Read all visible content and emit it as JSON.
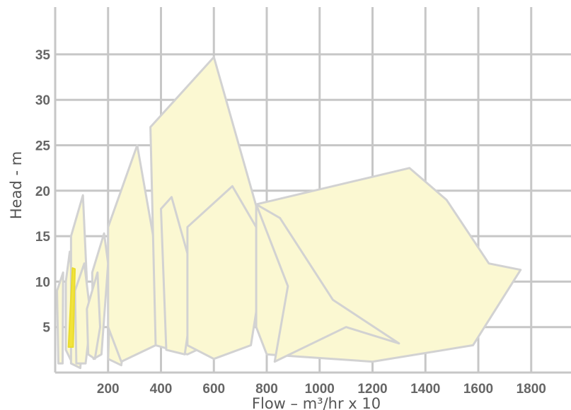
{
  "chart_data": {
    "type": "area",
    "xlabel": "Flow – m³/hr x 10",
    "ylabel": "Head - m",
    "xlim": [
      0,
      1850
    ],
    "ylim": [
      0,
      40
    ],
    "x_ticks": [
      200,
      400,
      600,
      800,
      1000,
      1200,
      1400,
      1600,
      1800
    ],
    "y_ticks": [
      5,
      10,
      15,
      20,
      25,
      30,
      35
    ],
    "grid": true,
    "colors": {
      "fill": "#fbf8d2",
      "outline": "#d2d2d2",
      "highlight_fill": "#f2e33a",
      "grid": "#c7c7c7",
      "tick_text": "#666666"
    },
    "regions": [
      {
        "points": [
          [
            7,
            9
          ],
          [
            30,
            11
          ],
          [
            28,
            1
          ],
          [
            12,
            1
          ]
        ]
      },
      {
        "points": [
          [
            40,
            10
          ],
          [
            55,
            13.3
          ],
          [
            70,
            8.3
          ],
          [
            62,
            1.2
          ],
          [
            40,
            2.5
          ]
        ]
      },
      {
        "points": [
          [
            60,
            15
          ],
          [
            105,
            19.5
          ],
          [
            120,
            10
          ],
          [
            95,
            0.5
          ],
          [
            60,
            1
          ]
        ]
      },
      {
        "points": [
          [
            75,
            9
          ],
          [
            110,
            12
          ],
          [
            135,
            6
          ],
          [
            115,
            1
          ],
          [
            80,
            1
          ]
        ]
      },
      {
        "points": [
          [
            140,
            11
          ],
          [
            185,
            15.3
          ],
          [
            200,
            12
          ],
          [
            175,
            2
          ],
          [
            145,
            1.5
          ]
        ]
      },
      {
        "points": [
          [
            120,
            7
          ],
          [
            160,
            11
          ],
          [
            170,
            5
          ],
          [
            150,
            1.5
          ],
          [
            125,
            2
          ]
        ]
      },
      {
        "points": [
          [
            210,
            10
          ],
          [
            250,
            14
          ],
          [
            285,
            8
          ],
          [
            250,
            0.8
          ],
          [
            200,
            1.5
          ]
        ]
      },
      {
        "points": [
          [
            200,
            16
          ],
          [
            310,
            25
          ],
          [
            395,
            11
          ],
          [
            380,
            3
          ],
          [
            250,
            1.2
          ],
          [
            200,
            5
          ]
        ]
      },
      {
        "points": [
          [
            360,
            27
          ],
          [
            600,
            34.7
          ],
          [
            770,
            17.3
          ],
          [
            720,
            5
          ],
          [
            500,
            2
          ],
          [
            380,
            3
          ]
        ]
      },
      {
        "points": [
          [
            400,
            18
          ],
          [
            440,
            19.3
          ],
          [
            530,
            10
          ],
          [
            490,
            2
          ],
          [
            420,
            2.5
          ]
        ]
      },
      {
        "points": [
          [
            500,
            16
          ],
          [
            670,
            20.5
          ],
          [
            800,
            14
          ],
          [
            740,
            3
          ],
          [
            600,
            1.5
          ],
          [
            500,
            3
          ]
        ]
      },
      {
        "points": [
          [
            760,
            18.5
          ],
          [
            1340,
            22.5
          ],
          [
            1480,
            19
          ],
          [
            1640,
            12
          ],
          [
            1760,
            11.3
          ],
          [
            1580,
            3
          ],
          [
            1200,
            1.2
          ],
          [
            800,
            2
          ],
          [
            760,
            5
          ]
        ]
      },
      {
        "points": [
          [
            760,
            18.5
          ],
          [
            880,
            9.5
          ],
          [
            830,
            1.2
          ],
          [
            1100,
            5
          ],
          [
            1300,
            3.2
          ],
          [
            1050,
            8
          ],
          [
            850,
            17
          ]
        ]
      },
      {
        "points": [
          [
            50,
            2.8
          ],
          [
            65,
            11.5
          ],
          [
            75,
            11.4
          ],
          [
            68,
            2.8
          ]
        ],
        "highlight": true
      }
    ]
  }
}
